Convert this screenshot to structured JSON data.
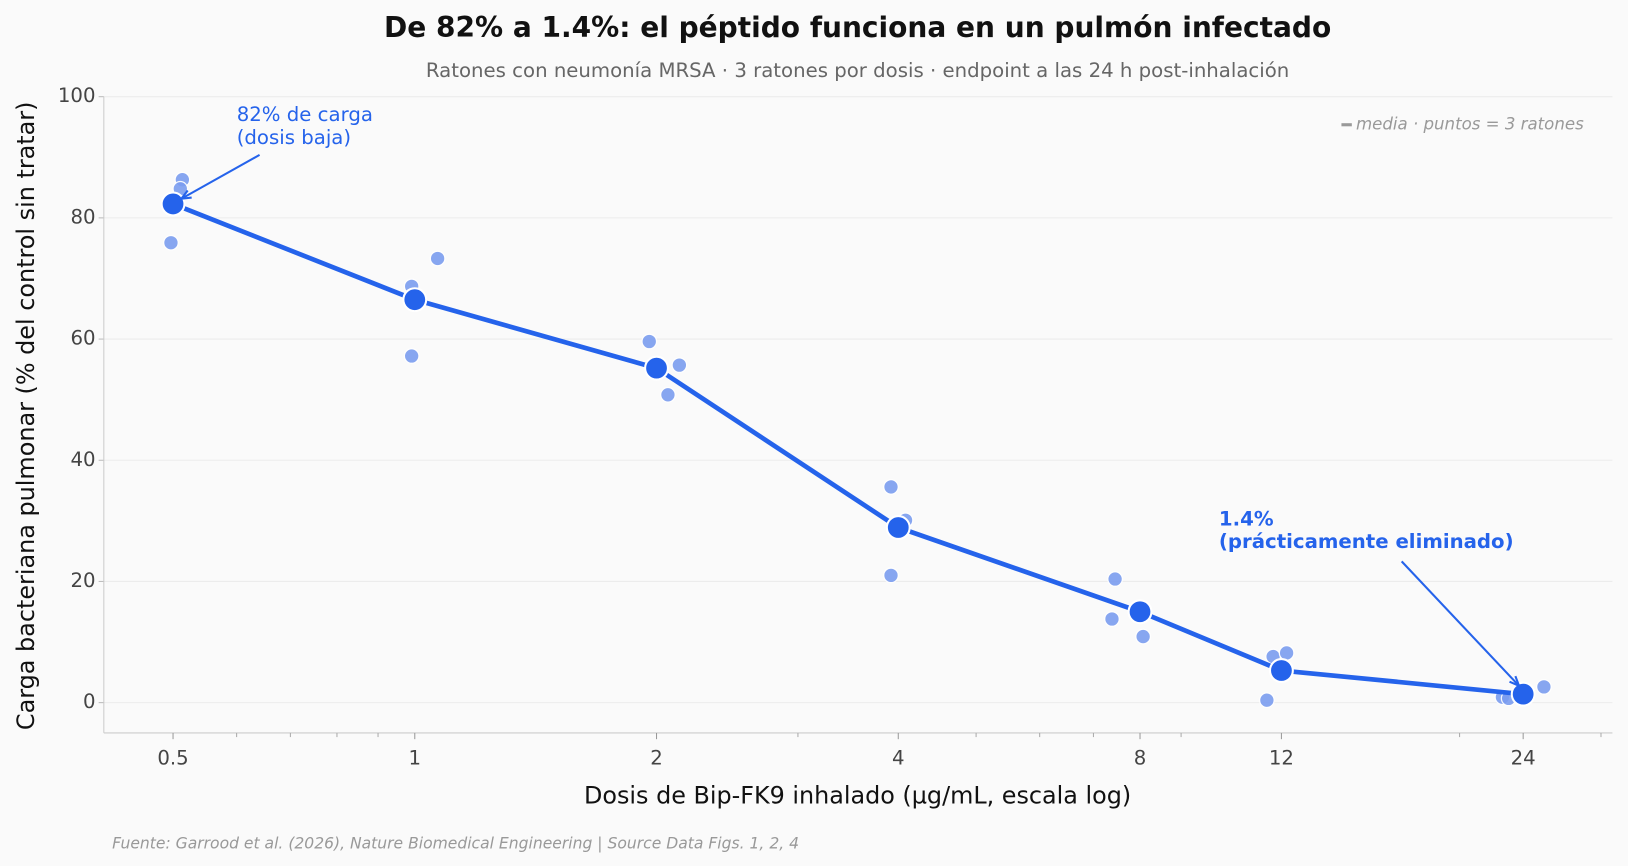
{
  "chart_data": {
    "type": "line",
    "title": "De 82% a 1.4%: el péptido funciona en un pulmón infectado",
    "subtitle": "Ratones con neumonía MRSA · 3 ratones por dosis · endpoint a las 24 h post-inhalación",
    "x_label": "Dosis de Bip-FK9 inhalado (µg/mL, escala log)",
    "y_label": "Carga bacteriana pulmonar (% del control sin tratar)",
    "x": [
      0.5,
      1,
      2,
      4,
      8,
      12,
      24
    ],
    "series": [
      {
        "name": "media",
        "color": "#2563eb",
        "values": [
          82.3,
          66.5,
          55.2,
          28.9,
          15.0,
          5.3,
          1.4
        ]
      }
    ],
    "replicates": {
      "name": "puntos = 3 ratones",
      "color": "#7b9df0",
      "values": [
        [
          86.3,
          84.8,
          75.9
        ],
        [
          68.7,
          73.3,
          57.2
        ],
        [
          59.6,
          50.8,
          55.7
        ],
        [
          35.6,
          30.1,
          21.0
        ],
        [
          20.4,
          10.9,
          13.8
        ],
        [
          7.6,
          8.2,
          0.4
        ],
        [
          0.9,
          0.7,
          2.6
        ]
      ]
    },
    "log_x": true,
    "xlim": [
      0.41,
      31
    ],
    "xticks": [
      0.5,
      1,
      2,
      4,
      8,
      12,
      24
    ],
    "xticks_minor": [
      0.6,
      0.7,
      0.8,
      0.9,
      3,
      5,
      6,
      7,
      9,
      20,
      30
    ],
    "ylim": [
      -5,
      100
    ],
    "yticks": [
      0,
      20,
      40,
      60,
      80,
      100
    ],
    "grid": true,
    "legend_text": "media · puntos = 3 ratones",
    "annotations": [
      {
        "lines": [
          "82% de carga",
          "(dosis baja)"
        ],
        "bold": false
      },
      {
        "lines": [
          "1.4%",
          "(prácticamente eliminado)"
        ],
        "bold": true
      }
    ],
    "source": "Fuente: Garrood et al. (2026), Nature Biomedical Engineering | Source Data Figs. 1, 2, 4"
  }
}
